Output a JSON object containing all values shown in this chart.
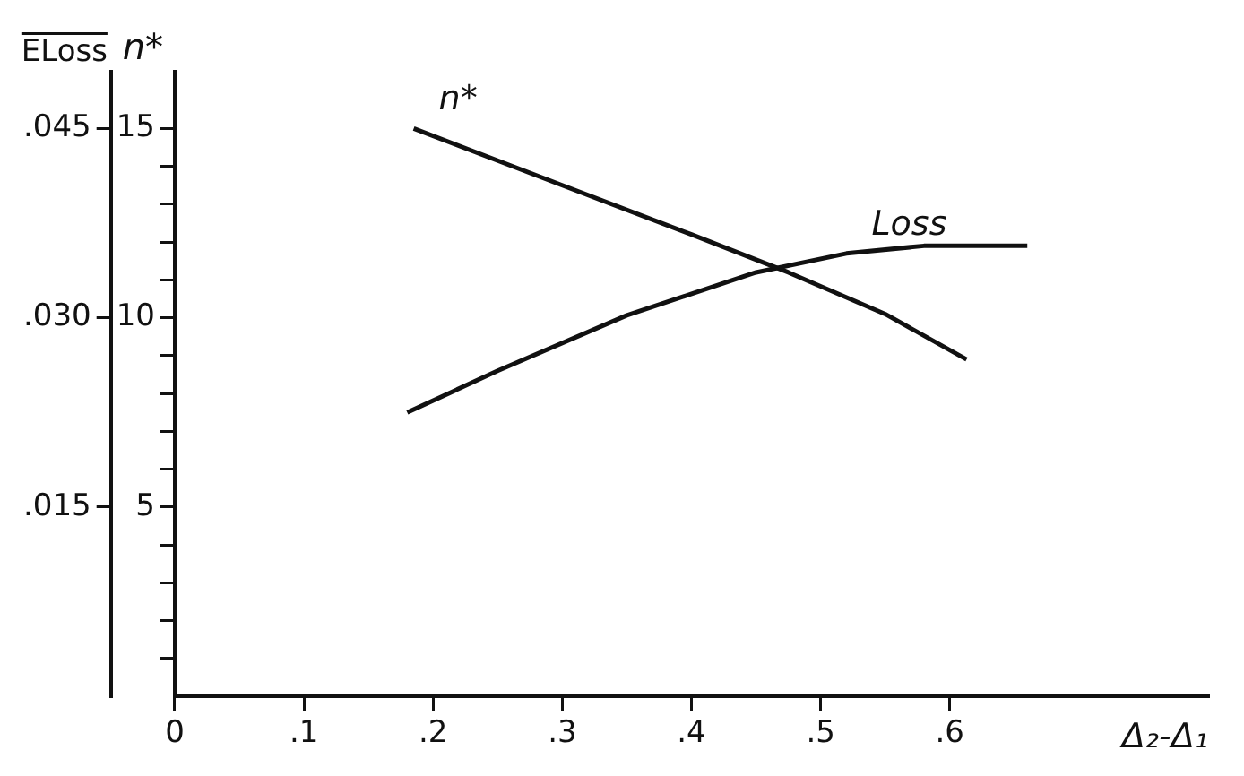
{
  "chart_data": {
    "type": "line",
    "xlabel": "Δ₂-Δ₁",
    "ylabel": "n*",
    "y2label": "ELoss",
    "xlim": [
      0,
      0.8
    ],
    "xticks": [
      {
        "value": 0,
        "label": "0"
      },
      {
        "value": 0.1,
        "label": ".1"
      },
      {
        "value": 0.2,
        "label": ".2"
      },
      {
        "value": 0.3,
        "label": ".3"
      },
      {
        "value": 0.4,
        "label": ".4"
      },
      {
        "value": 0.5,
        "label": ".5"
      },
      {
        "value": 0.6,
        "label": ".6"
      }
    ],
    "ylim": [
      0,
      16.5
    ],
    "yticks": [
      {
        "value": 1,
        "label": null
      },
      {
        "value": 2,
        "label": null
      },
      {
        "value": 3,
        "label": null
      },
      {
        "value": 4,
        "label": null
      },
      5,
      {
        "value": 6,
        "label": null
      },
      {
        "value": 7,
        "label": null
      },
      {
        "value": 8,
        "label": null
      },
      {
        "value": 9,
        "label": null
      },
      10,
      {
        "value": 11,
        "label": null
      },
      {
        "value": 12,
        "label": null
      },
      {
        "value": 13,
        "label": null
      },
      {
        "value": 14,
        "label": null
      },
      15
    ],
    "y2lim": [
      0,
      0.0495
    ],
    "y2ticks": [
      {
        "value": 0.015,
        "label": ".015"
      },
      {
        "value": 0.03,
        "label": ".030"
      },
      {
        "value": 0.045,
        "label": ".045"
      }
    ],
    "grid": false,
    "legend": false,
    "marker": "none",
    "line_style": "solid",
    "series": [
      {
        "name": "n*",
        "color": "#111111",
        "x": [
          0.185,
          0.3,
          0.4,
          0.475,
          0.55,
          0.613
        ],
        "values": [
          15.0,
          13.5,
          12.2,
          11.2,
          10.1,
          8.9
        ]
      },
      {
        "name": "Loss",
        "color": "#111111",
        "axis": "y2",
        "x": [
          0.18,
          0.25,
          0.35,
          0.45,
          0.52,
          0.58,
          0.66
        ],
        "values": [
          0.0225,
          0.0258,
          0.0302,
          0.0336,
          0.0351,
          0.0357,
          0.0357
        ]
      }
    ]
  }
}
